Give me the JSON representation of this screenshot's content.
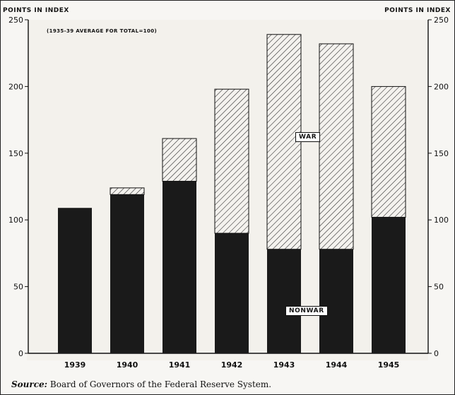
{
  "chart_data": {
    "type": "bar",
    "stacked": true,
    "categories": [
      "1939",
      "1940",
      "1941",
      "1942",
      "1943",
      "1944",
      "1945"
    ],
    "series": [
      {
        "name": "NONWAR",
        "values": [
          109,
          119,
          129,
          90,
          78,
          78,
          102
        ],
        "color": "#1a1a1a",
        "pattern": "solid"
      },
      {
        "name": "WAR",
        "values": [
          0,
          5,
          32,
          108,
          161,
          154,
          98
        ],
        "color": "#1a1a1a",
        "pattern": "diagonal-hatch"
      }
    ],
    "ylabel_left": "POINTS IN INDEX",
    "ylabel_right": "POINTS IN INDEX",
    "note": "(1935-39 AVERAGE FOR TOTAL=100)",
    "ylim": [
      0,
      250
    ],
    "yticks": [
      0,
      50,
      100,
      150,
      200,
      250
    ],
    "grid": false
  },
  "source": {
    "label": "Source:",
    "text": "Board of Governors of the Federal Reserve System."
  }
}
